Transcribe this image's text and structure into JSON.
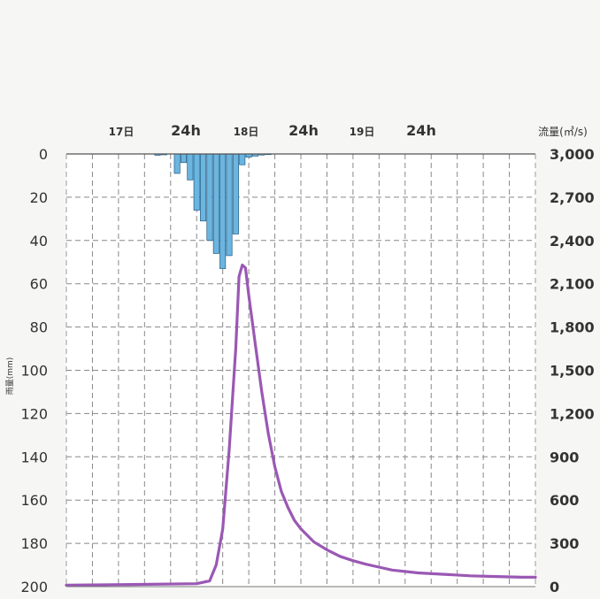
{
  "chart_data": {
    "type": "bar+line",
    "time_labels": [
      "17日",
      "24h",
      "18日",
      "24h",
      "19日",
      "24h"
    ],
    "left_axis": {
      "label": "雨量(mm)",
      "ticks": [
        0,
        20,
        40,
        60,
        80,
        100,
        120,
        140,
        160,
        180,
        200
      ],
      "range": [
        0,
        200
      ],
      "inverted": true
    },
    "right_axis": {
      "label": "流量(㎥/s)",
      "ticks": [
        "3,000",
        "2,700",
        "2,400",
        "2,100",
        "1,800",
        "1,500",
        "1,200",
        "900",
        "600",
        "300",
        "0"
      ],
      "range": [
        0,
        3000
      ]
    },
    "x_range": [
      0,
      72
    ],
    "grid": true,
    "colors": {
      "rain": "#6bb5df",
      "rain_edge": "#1f5d88",
      "flow": "#9a58b4",
      "grid": "#888888"
    },
    "series": [
      {
        "kind": "bar",
        "axis": "left",
        "x": [
          14,
          15,
          17,
          18,
          19,
          20,
          21,
          22,
          23,
          24,
          25,
          26,
          27,
          28,
          29,
          30,
          31
        ],
        "values": [
          0.6,
          0.4,
          9,
          4,
          12,
          26,
          31,
          40,
          46,
          53,
          47,
          37,
          5,
          1.5,
          1,
          0.5,
          0.3
        ]
      },
      {
        "kind": "line",
        "axis": "right",
        "x": [
          0,
          10,
          20,
          22,
          23,
          24,
          25,
          26,
          26.5,
          27,
          27.5,
          28,
          29,
          30,
          31,
          32,
          33,
          34,
          35,
          36,
          38,
          40,
          42,
          44,
          46,
          48,
          50,
          54,
          58,
          62,
          66,
          70,
          72
        ],
        "values": [
          10,
          15,
          20,
          40,
          150,
          400,
          950,
          1650,
          2150,
          2230,
          2210,
          2020,
          1680,
          1350,
          1060,
          830,
          660,
          550,
          460,
          400,
          310,
          255,
          210,
          180,
          155,
          135,
          115,
          95,
          85,
          75,
          70,
          65,
          65
        ]
      }
    ]
  }
}
